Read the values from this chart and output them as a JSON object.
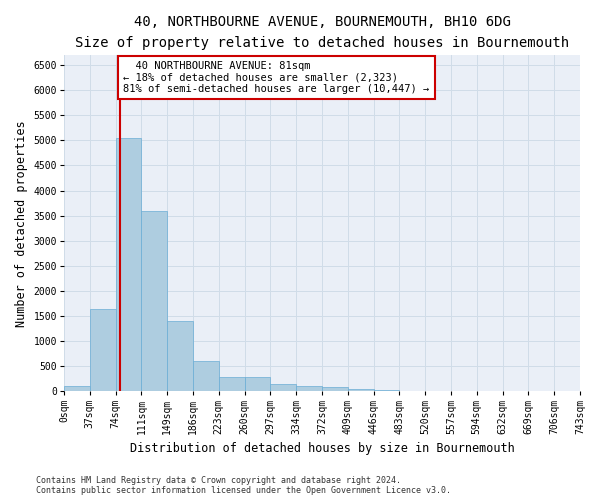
{
  "title_line1": "40, NORTHBOURNE AVENUE, BOURNEMOUTH, BH10 6DG",
  "title_line2": "Size of property relative to detached houses in Bournemouth",
  "xlabel": "Distribution of detached houses by size in Bournemouth",
  "ylabel": "Number of detached properties",
  "footnote1": "Contains HM Land Registry data © Crown copyright and database right 2024.",
  "footnote2": "Contains public sector information licensed under the Open Government Licence v3.0.",
  "bin_labels": [
    "0sqm",
    "37sqm",
    "74sqm",
    "111sqm",
    "149sqm",
    "186sqm",
    "223sqm",
    "260sqm",
    "297sqm",
    "334sqm",
    "372sqm",
    "409sqm",
    "446sqm",
    "483sqm",
    "520sqm",
    "557sqm",
    "594sqm",
    "632sqm",
    "669sqm",
    "706sqm",
    "743sqm"
  ],
  "bar_values": [
    100,
    1650,
    5050,
    3600,
    1400,
    610,
    295,
    285,
    150,
    115,
    80,
    50,
    28,
    0,
    0,
    0,
    0,
    0,
    0,
    0,
    0
  ],
  "bar_color": "#aecde0",
  "bar_edge_color": "#6aadd5",
  "grid_color": "#d0dce8",
  "background_color": "#eaeff7",
  "vline_color": "#cc0000",
  "annotation_line1": "  40 NORTHBOURNE AVENUE: 81sqm",
  "annotation_line2": "← 18% of detached houses are smaller (2,323)",
  "annotation_line3": "81% of semi-detached houses are larger (10,447) →",
  "annotation_box_color": "#cc0000",
  "annotation_fill": "#ffffff",
  "ylim": [
    0,
    6700
  ],
  "yticks": [
    0,
    500,
    1000,
    1500,
    2000,
    2500,
    3000,
    3500,
    4000,
    4500,
    5000,
    5500,
    6000,
    6500
  ],
  "title_fontsize": 10,
  "subtitle_fontsize": 9,
  "axis_label_fontsize": 8.5,
  "tick_fontsize": 7,
  "annotation_fontsize": 7.5,
  "footnote_fontsize": 6
}
